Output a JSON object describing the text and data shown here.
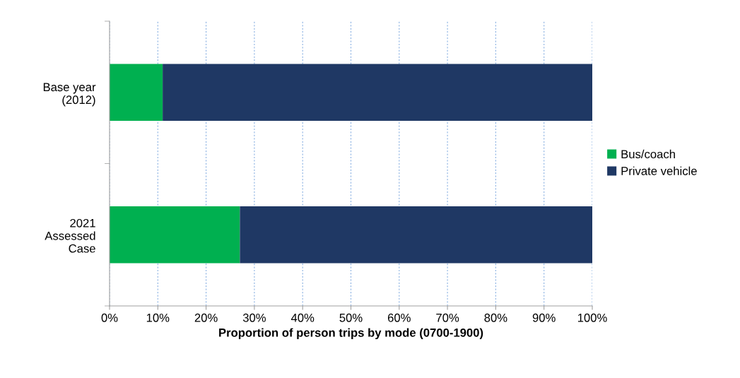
{
  "chart_data": {
    "type": "bar",
    "orientation": "horizontal",
    "stacked": true,
    "xlabel": "Proportion of person trips by mode (0700-1900)",
    "categories": [
      "Base year\n(2012)",
      "2021\nAssessed\nCase"
    ],
    "series": [
      {
        "name": "Bus/coach",
        "color": "#00b050",
        "values": [
          11,
          27
        ]
      },
      {
        "name": "Private vehicle",
        "color": "#1f3864",
        "values": [
          89,
          73
        ]
      }
    ],
    "xlim": [
      0,
      100
    ],
    "xticks": [
      {
        "value": 0,
        "label": "0%"
      },
      {
        "value": 10,
        "label": "10%"
      },
      {
        "value": 20,
        "label": "20%"
      },
      {
        "value": 30,
        "label": "30%"
      },
      {
        "value": 40,
        "label": "40%"
      },
      {
        "value": 50,
        "label": "50%"
      },
      {
        "value": 60,
        "label": "60%"
      },
      {
        "value": 70,
        "label": "70%"
      },
      {
        "value": 80,
        "label": "80%"
      },
      {
        "value": 90,
        "label": "90%"
      },
      {
        "value": 100,
        "label": "100%"
      }
    ],
    "grid": "x",
    "legend": "right"
  }
}
